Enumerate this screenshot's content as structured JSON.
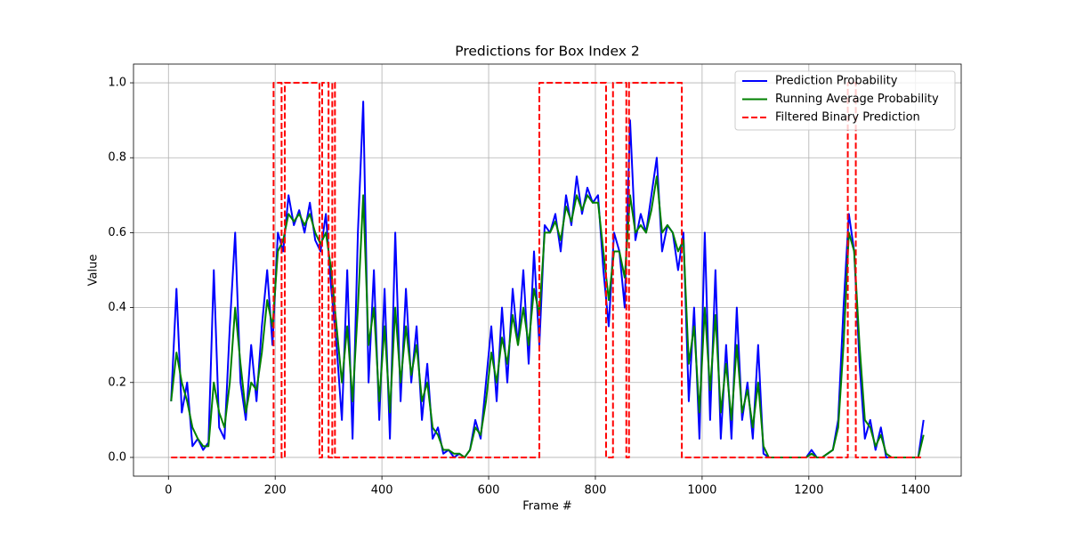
{
  "chart_data": {
    "type": "line",
    "title": "Predictions for Box Index 2",
    "xlabel": "Frame #",
    "ylabel": "Value",
    "xlim": [
      -65.5,
      1485.5
    ],
    "ylim": [
      -0.05,
      1.05
    ],
    "xticks": [
      0,
      200,
      400,
      600,
      800,
      1000,
      1200,
      1400
    ],
    "yticks": [
      {
        "value": 0,
        "label": "0.0"
      },
      {
        "value": 0.2,
        "label": "0.2"
      },
      {
        "value": 0.4,
        "label": "0.4"
      },
      {
        "value": 0.6,
        "label": "0.6"
      },
      {
        "value": 0.8,
        "label": "0.8"
      },
      {
        "value": 1,
        "label": "1.0"
      }
    ],
    "grid": true,
    "legend": "upper right",
    "series": [
      {
        "name": "Prediction Probability",
        "color": "#0000ff",
        "dash": "solid",
        "x": [
          5,
          15,
          25,
          35,
          45,
          55,
          65,
          75,
          85,
          95,
          105,
          115,
          125,
          135,
          145,
          155,
          165,
          175,
          185,
          195,
          205,
          215,
          225,
          235,
          245,
          255,
          265,
          275,
          285,
          295,
          305,
          315,
          325,
          335,
          345,
          355,
          365,
          375,
          385,
          395,
          405,
          415,
          425,
          435,
          445,
          455,
          465,
          475,
          485,
          495,
          505,
          515,
          525,
          535,
          545,
          555,
          565,
          575,
          585,
          595,
          605,
          615,
          625,
          635,
          645,
          655,
          665,
          675,
          685,
          695,
          705,
          715,
          725,
          735,
          745,
          755,
          765,
          775,
          785,
          795,
          805,
          815,
          825,
          835,
          845,
          855,
          865,
          875,
          885,
          895,
          905,
          915,
          925,
          935,
          945,
          955,
          965,
          975,
          985,
          995,
          1005,
          1015,
          1025,
          1035,
          1045,
          1055,
          1065,
          1075,
          1085,
          1095,
          1105,
          1115,
          1125,
          1135,
          1145,
          1155,
          1165,
          1175,
          1185,
          1195,
          1205,
          1215,
          1225,
          1235,
          1245,
          1255,
          1265,
          1275,
          1285,
          1295,
          1305,
          1315,
          1325,
          1335,
          1345,
          1355,
          1365,
          1375,
          1385,
          1395,
          1405,
          1415
        ],
        "values": [
          0.15,
          0.45,
          0.12,
          0.2,
          0.03,
          0.05,
          0.02,
          0.04,
          0.5,
          0.08,
          0.05,
          0.35,
          0.6,
          0.2,
          0.1,
          0.3,
          0.15,
          0.35,
          0.5,
          0.3,
          0.6,
          0.55,
          0.7,
          0.62,
          0.66,
          0.6,
          0.68,
          0.58,
          0.55,
          0.65,
          0.45,
          0.3,
          0.1,
          0.5,
          0.05,
          0.6,
          0.95,
          0.2,
          0.5,
          0.1,
          0.45,
          0.05,
          0.6,
          0.15,
          0.45,
          0.2,
          0.35,
          0.1,
          0.25,
          0.05,
          0.08,
          0.01,
          0.02,
          0,
          0.01,
          0,
          0.02,
          0.1,
          0.05,
          0.2,
          0.35,
          0.15,
          0.4,
          0.2,
          0.45,
          0.3,
          0.5,
          0.25,
          0.55,
          0.3,
          0.62,
          0.6,
          0.65,
          0.55,
          0.7,
          0.62,
          0.75,
          0.65,
          0.72,
          0.68,
          0.7,
          0.5,
          0.35,
          0.6,
          0.55,
          0.4,
          0.9,
          0.58,
          0.65,
          0.6,
          0.7,
          0.8,
          0.55,
          0.62,
          0.6,
          0.5,
          0.6,
          0.15,
          0.4,
          0.05,
          0.6,
          0.1,
          0.5,
          0.05,
          0.3,
          0.05,
          0.4,
          0.1,
          0.2,
          0.05,
          0.3,
          0.01,
          0,
          0,
          0,
          0,
          0,
          0,
          0,
          0,
          0.02,
          0,
          0,
          0.01,
          0.02,
          0.1,
          0.4,
          0.65,
          0.55,
          0.25,
          0.05,
          0.1,
          0.02,
          0.08,
          0,
          0,
          0,
          0,
          0,
          0,
          0,
          0.1
        ]
      },
      {
        "name": "Running Average Probability",
        "color": "#008000",
        "dash": "solid",
        "x": [
          5,
          15,
          25,
          35,
          45,
          55,
          65,
          75,
          85,
          95,
          105,
          115,
          125,
          135,
          145,
          155,
          165,
          175,
          185,
          195,
          205,
          215,
          225,
          235,
          245,
          255,
          265,
          275,
          285,
          295,
          305,
          315,
          325,
          335,
          345,
          355,
          365,
          375,
          385,
          395,
          405,
          415,
          425,
          435,
          445,
          455,
          465,
          475,
          485,
          495,
          505,
          515,
          525,
          535,
          545,
          555,
          565,
          575,
          585,
          595,
          605,
          615,
          625,
          635,
          645,
          655,
          665,
          675,
          685,
          695,
          705,
          715,
          725,
          735,
          745,
          755,
          765,
          775,
          785,
          795,
          805,
          815,
          825,
          835,
          845,
          855,
          865,
          875,
          885,
          895,
          905,
          915,
          925,
          935,
          945,
          955,
          965,
          975,
          985,
          995,
          1005,
          1015,
          1025,
          1035,
          1045,
          1055,
          1065,
          1075,
          1085,
          1095,
          1105,
          1115,
          1125,
          1135,
          1145,
          1155,
          1165,
          1175,
          1185,
          1195,
          1205,
          1215,
          1225,
          1235,
          1245,
          1255,
          1265,
          1275,
          1285,
          1295,
          1305,
          1315,
          1325,
          1335,
          1345,
          1355,
          1365,
          1375,
          1385,
          1395,
          1405,
          1415
        ],
        "values": [
          0.15,
          0.28,
          0.2,
          0.15,
          0.08,
          0.05,
          0.03,
          0.03,
          0.2,
          0.12,
          0.08,
          0.2,
          0.4,
          0.25,
          0.12,
          0.2,
          0.18,
          0.28,
          0.42,
          0.35,
          0.55,
          0.58,
          0.65,
          0.63,
          0.65,
          0.62,
          0.65,
          0.6,
          0.57,
          0.6,
          0.5,
          0.35,
          0.2,
          0.35,
          0.15,
          0.4,
          0.7,
          0.3,
          0.4,
          0.15,
          0.35,
          0.12,
          0.4,
          0.2,
          0.35,
          0.22,
          0.3,
          0.15,
          0.2,
          0.08,
          0.06,
          0.02,
          0.02,
          0.01,
          0.01,
          0,
          0.02,
          0.08,
          0.06,
          0.15,
          0.28,
          0.2,
          0.32,
          0.25,
          0.38,
          0.3,
          0.4,
          0.3,
          0.45,
          0.38,
          0.6,
          0.6,
          0.63,
          0.58,
          0.67,
          0.63,
          0.7,
          0.66,
          0.7,
          0.68,
          0.68,
          0.55,
          0.42,
          0.55,
          0.55,
          0.48,
          0.7,
          0.6,
          0.62,
          0.6,
          0.66,
          0.75,
          0.6,
          0.62,
          0.6,
          0.55,
          0.58,
          0.25,
          0.35,
          0.12,
          0.4,
          0.18,
          0.38,
          0.12,
          0.25,
          0.1,
          0.3,
          0.12,
          0.18,
          0.08,
          0.2,
          0.03,
          0,
          0,
          0,
          0,
          0,
          0,
          0,
          0,
          0.01,
          0,
          0,
          0.01,
          0.02,
          0.08,
          0.3,
          0.6,
          0.55,
          0.3,
          0.1,
          0.08,
          0.03,
          0.06,
          0.01,
          0,
          0,
          0,
          0,
          0,
          0,
          0.06
        ]
      },
      {
        "name": "Filtered Binary Prediction",
        "color": "#ff0000",
        "dash": "dashed",
        "x": [
          5,
          197,
          197,
          212,
          212,
          218,
          218,
          283,
          283,
          288,
          288,
          300,
          300,
          307,
          307,
          312,
          312,
          695,
          695,
          820,
          820,
          833,
          833,
          858,
          858,
          863,
          863,
          962,
          962,
          1273,
          1273,
          1288,
          1288,
          1415
        ],
        "values": [
          0,
          0,
          1,
          1,
          0,
          0,
          1,
          1,
          0,
          0,
          1,
          1,
          0,
          0,
          1,
          1,
          0,
          0,
          1,
          1,
          0,
          0,
          1,
          1,
          0,
          0,
          1,
          1,
          0,
          0,
          1,
          1,
          0,
          0
        ]
      }
    ]
  }
}
